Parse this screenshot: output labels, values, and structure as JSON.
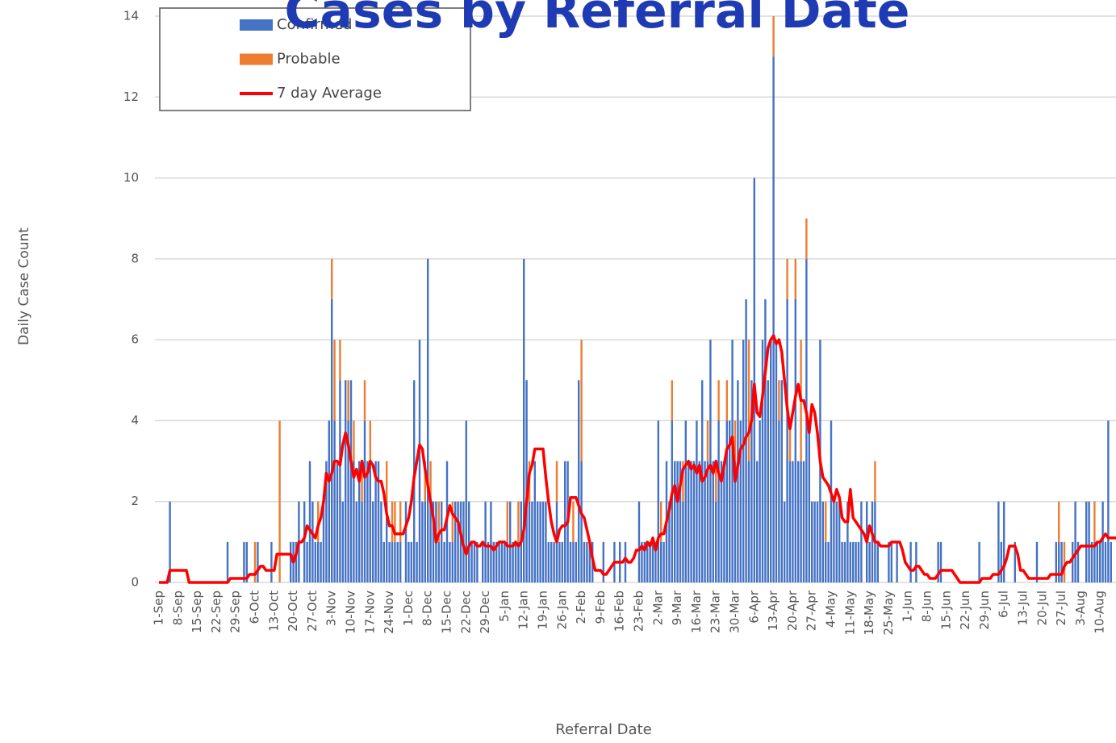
{
  "chart_data": {
    "type": "bar",
    "title": "Cases by Referral Date",
    "x_label": "Referral Date",
    "y_label": "Daily Case Count",
    "ylim": [
      0,
      14
    ],
    "yticks": [
      0,
      2,
      4,
      6,
      8,
      10,
      12,
      14
    ],
    "grid": true,
    "legend": "upper left",
    "categories": [
      "1-Sep",
      null,
      null,
      null,
      null,
      null,
      null,
      "8-Sep",
      null,
      null,
      null,
      null,
      null,
      null,
      "15-Sep",
      null,
      null,
      null,
      null,
      null,
      null,
      "22-Sep",
      null,
      null,
      null,
      null,
      null,
      null,
      "29-Sep",
      null,
      null,
      null,
      null,
      null,
      null,
      "6-Oct",
      null,
      null,
      null,
      null,
      null,
      null,
      "13-Oct",
      null,
      null,
      null,
      null,
      null,
      null,
      "20-Oct",
      null,
      null,
      null,
      null,
      null,
      null,
      "27-Oct",
      null,
      null,
      null,
      null,
      null,
      null,
      "3-Nov",
      null,
      null,
      null,
      null,
      null,
      null,
      "10-Nov",
      null,
      null,
      null,
      null,
      null,
      null,
      "17-Nov",
      null,
      null,
      null,
      null,
      null,
      null,
      "24-Nov",
      null,
      null,
      null,
      null,
      null,
      null,
      "1-Dec",
      null,
      null,
      null,
      null,
      null,
      null,
      "8-Dec",
      null,
      null,
      null,
      null,
      null,
      null,
      "15-Dec",
      null,
      null,
      null,
      null,
      null,
      null,
      "22-Dec",
      null,
      null,
      null,
      null,
      null,
      null,
      "29-Dec",
      null,
      null,
      null,
      null,
      null,
      null,
      "5-Jan",
      null,
      null,
      null,
      null,
      null,
      null,
      "12-Jan",
      null,
      null,
      null,
      null,
      null,
      null,
      "19-Jan",
      null,
      null,
      null,
      null,
      null,
      null,
      "26-Jan",
      null,
      null,
      null,
      null,
      null,
      null,
      "2-Feb",
      null,
      null,
      null,
      null,
      null,
      null,
      "9-Feb",
      null,
      null,
      null,
      null,
      null,
      null,
      "16-Feb",
      null,
      null,
      null,
      null,
      null,
      null,
      "23-Feb",
      null,
      null,
      null,
      null,
      null,
      null,
      "2-Mar",
      null,
      null,
      null,
      null,
      null,
      null,
      "9-Mar",
      null,
      null,
      null,
      null,
      null,
      null,
      "16-Mar",
      null,
      null,
      null,
      null,
      null,
      null,
      "23-Mar",
      null,
      null,
      null,
      null,
      null,
      null,
      "30-Mar",
      null,
      null,
      null,
      null,
      null,
      null,
      "6-Apr",
      null,
      null,
      null,
      null,
      null,
      null,
      "13-Apr",
      null,
      null,
      null,
      null,
      null,
      null,
      "20-Apr",
      null,
      null,
      null,
      null,
      null,
      null,
      "27-Apr",
      null,
      null,
      null,
      null,
      null,
      null,
      "4-May",
      null,
      null,
      null,
      null,
      null,
      null,
      "11-May",
      null,
      null,
      null,
      null,
      null,
      null,
      "18-May",
      null,
      null,
      null,
      null,
      null,
      null,
      "25-May",
      null,
      null,
      null,
      null,
      null,
      null,
      "1-Jun",
      null,
      null,
      null,
      null,
      null,
      null,
      "8-Jun",
      null,
      null,
      null,
      null,
      null,
      null,
      "15-Jun",
      null,
      null,
      null,
      null,
      null,
      null,
      "22-Jun",
      null,
      null,
      null,
      null,
      null,
      null,
      "29-Jun",
      null,
      null,
      null,
      null,
      null,
      null,
      "6-Jul",
      null,
      null,
      null,
      null,
      null,
      null,
      "13-Jul",
      null,
      null,
      null,
      null,
      null,
      null,
      "20-Jul",
      null,
      null,
      null,
      null,
      null,
      null,
      "27-Jul",
      null,
      null,
      null,
      null,
      null,
      null,
      "3-Aug",
      null,
      null,
      null,
      null,
      null,
      null,
      "10-Aug",
      null,
      null,
      null,
      null,
      null,
      null
    ],
    "series": [
      {
        "name": "Confirmed",
        "color": "#4472c4",
        "values": [
          0,
          0,
          0,
          0,
          2,
          0,
          0,
          0,
          0,
          0,
          0,
          0,
          0,
          0,
          0,
          0,
          0,
          0,
          0,
          0,
          0,
          0,
          0,
          0,
          0,
          1,
          0,
          0,
          0,
          0,
          0,
          1,
          1,
          0,
          0,
          0,
          1,
          0,
          0,
          0,
          0,
          1,
          0,
          0,
          0,
          0,
          0,
          0,
          1,
          1,
          1,
          2,
          0,
          2,
          1,
          3,
          2,
          1,
          1,
          1,
          2,
          3,
          4,
          7,
          4,
          3,
          5,
          2,
          5,
          4,
          5,
          3,
          2,
          3,
          2,
          4,
          3,
          3,
          2,
          3,
          3,
          2,
          1,
          2,
          1,
          1,
          1,
          1,
          1,
          0,
          2,
          1,
          1,
          5,
          1,
          6,
          2,
          2,
          8,
          2,
          2,
          2,
          1,
          2,
          1,
          3,
          1,
          1,
          2,
          2,
          2,
          2,
          4,
          2,
          1,
          1,
          1,
          0,
          1,
          2,
          1,
          2,
          1,
          1,
          1,
          1,
          1,
          1,
          2,
          1,
          1,
          1,
          2,
          8,
          5,
          2,
          2,
          3,
          2,
          2,
          2,
          2,
          1,
          1,
          1,
          2,
          1,
          1,
          3,
          3,
          1,
          1,
          1,
          5,
          3,
          1,
          1,
          1,
          1,
          0,
          0,
          0,
          1,
          0,
          0,
          0,
          1,
          0,
          1,
          0,
          1,
          0,
          0,
          0,
          0,
          2,
          1,
          1,
          1,
          1,
          1,
          1,
          4,
          1,
          1,
          3,
          2,
          4,
          3,
          3,
          3,
          2,
          4,
          3,
          3,
          3,
          4,
          3,
          5,
          3,
          3,
          6,
          3,
          2,
          4,
          3,
          3,
          4,
          4,
          6,
          3,
          5,
          4,
          6,
          7,
          3,
          5,
          10,
          3,
          4,
          6,
          7,
          5,
          6,
          13,
          6,
          4,
          5,
          2,
          7,
          3,
          3,
          7,
          3,
          3,
          3,
          8,
          4,
          2,
          2,
          2,
          6,
          2,
          1,
          1,
          4,
          2,
          2,
          2,
          1,
          1,
          2,
          1,
          1,
          1,
          1,
          2,
          0,
          2,
          1,
          2,
          2,
          1,
          0,
          0,
          0,
          1,
          1,
          0,
          1,
          0,
          0,
          0,
          0,
          1,
          0,
          1,
          0,
          0,
          0,
          0,
          0,
          0,
          0,
          1,
          1,
          0,
          0,
          0,
          0,
          0,
          0,
          0,
          0,
          0,
          0,
          0,
          0,
          0,
          1,
          0,
          0,
          0,
          0,
          0,
          0,
          2,
          1,
          2,
          0,
          0,
          0,
          1,
          0,
          0,
          0,
          0,
          0,
          0,
          0,
          1,
          0,
          0,
          0,
          0,
          0,
          0,
          1,
          1,
          1,
          0,
          0,
          0,
          1,
          2,
          1,
          0,
          0,
          2,
          2,
          1,
          1,
          1,
          1,
          2,
          1,
          4,
          1,
          0,
          0
        ]
      },
      {
        "name": "Probable",
        "color": "#ed7d31",
        "values": [
          0,
          0,
          0,
          0,
          0,
          0,
          0,
          0,
          0,
          0,
          0,
          0,
          0,
          0,
          0,
          0,
          0,
          0,
          0,
          0,
          0,
          0,
          0,
          0,
          0,
          0,
          0,
          0,
          0,
          0,
          0,
          0,
          0,
          0,
          0,
          1,
          0,
          0,
          0,
          0,
          0,
          0,
          0,
          0,
          4,
          0,
          0,
          0,
          0,
          0,
          0,
          0,
          0,
          0,
          0,
          0,
          0,
          0,
          1,
          0,
          0,
          0,
          0,
          1,
          2,
          0,
          1,
          0,
          0,
          1,
          0,
          1,
          0,
          0,
          1,
          1,
          0,
          1,
          0,
          0,
          0,
          0,
          0,
          1,
          0,
          1,
          1,
          0,
          1,
          0,
          0,
          0,
          0,
          0,
          0,
          0,
          0,
          1,
          0,
          1,
          0,
          0,
          1,
          0,
          0,
          0,
          0,
          1,
          0,
          0,
          0,
          0,
          0,
          0,
          0,
          0,
          0,
          0,
          0,
          0,
          0,
          0,
          0,
          0,
          0,
          0,
          0,
          1,
          0,
          0,
          0,
          1,
          0,
          0,
          0,
          1,
          0,
          0,
          0,
          0,
          0,
          0,
          0,
          0,
          0,
          1,
          0,
          0,
          0,
          0,
          0,
          1,
          0,
          0,
          3,
          0,
          0,
          0,
          0,
          0,
          0,
          0,
          0,
          0,
          0,
          0,
          0,
          0,
          0,
          0,
          0,
          0,
          0,
          0,
          0,
          0,
          0,
          0,
          0,
          0,
          0,
          0,
          0,
          1,
          0,
          0,
          0,
          1,
          0,
          0,
          0,
          1,
          0,
          0,
          0,
          0,
          0,
          0,
          0,
          0,
          1,
          0,
          0,
          1,
          1,
          0,
          0,
          1,
          0,
          0,
          1,
          0,
          0,
          0,
          0,
          3,
          0,
          0,
          0,
          0,
          0,
          0,
          0,
          0,
          1,
          0,
          1,
          0,
          0,
          1,
          1,
          0,
          1,
          0,
          3,
          0,
          1,
          0,
          0,
          0,
          0,
          0,
          0,
          1,
          0,
          0,
          0,
          0,
          0,
          0,
          0,
          0,
          0,
          0,
          0,
          0,
          0,
          0,
          0,
          0,
          0,
          1,
          0,
          0,
          0,
          0,
          0,
          0,
          0,
          0,
          0,
          0,
          0,
          0,
          0,
          0,
          0,
          0,
          0,
          0,
          0,
          0,
          0,
          0,
          0,
          0,
          0,
          0,
          0,
          0,
          0,
          0,
          0,
          0,
          0,
          0,
          0,
          0,
          0,
          0,
          0,
          0,
          0,
          0,
          0,
          0,
          0,
          0,
          0,
          0,
          0,
          0,
          0,
          0,
          0,
          0,
          0,
          0,
          0,
          0,
          0,
          0,
          0,
          0,
          0,
          0,
          0,
          0,
          1,
          0,
          1,
          0,
          0,
          0,
          0,
          0,
          0,
          0,
          0,
          0,
          0,
          1,
          0,
          0,
          0,
          0,
          0,
          0,
          0,
          0
        ]
      },
      {
        "name": "7 day Average",
        "color": "#ff0000",
        "values": [
          0,
          0,
          0,
          0,
          0.3,
          0.3,
          0.3,
          0.3,
          0.3,
          0.3,
          0.3,
          0,
          0,
          0,
          0,
          0,
          0,
          0,
          0,
          0,
          0,
          0,
          0,
          0,
          0,
          0,
          0.1,
          0.1,
          0.1,
          0.1,
          0.1,
          0.1,
          0.1,
          0.2,
          0.2,
          0.2,
          0.3,
          0.4,
          0.4,
          0.3,
          0.3,
          0.3,
          0.3,
          0.7,
          0.7,
          0.7,
          0.7,
          0.7,
          0.7,
          0.5,
          0.7,
          1.0,
          1.0,
          1.1,
          1.4,
          1.3,
          1.2,
          1.1,
          1.4,
          1.6,
          2.0,
          2.7,
          2.5,
          2.7,
          3.0,
          3.0,
          2.9,
          3.4,
          3.7,
          3.4,
          3.0,
          2.6,
          2.8,
          2.5,
          3.0,
          2.6,
          2.7,
          3.0,
          2.9,
          2.6,
          2.5,
          2.5,
          2.2,
          1.7,
          1.4,
          1.4,
          1.2,
          1.2,
          1.2,
          1.2,
          1.4,
          1.6,
          2.0,
          2.6,
          3.0,
          3.4,
          3.3,
          2.8,
          2.4,
          2.0,
          1.6,
          1.0,
          1.2,
          1.3,
          1.3,
          1.6,
          1.9,
          1.7,
          1.6,
          1.5,
          1.2,
          0.9,
          0.7,
          0.9,
          1.0,
          1.0,
          0.9,
          0.9,
          1.0,
          0.9,
          0.9,
          0.9,
          0.8,
          0.9,
          1.0,
          1.0,
          1.0,
          0.9,
          0.9,
          0.9,
          1.0,
          0.9,
          1.0,
          1.3,
          2.0,
          2.7,
          2.9,
          3.3,
          3.3,
          3.3,
          3.3,
          2.6,
          2.0,
          1.5,
          1.2,
          1.0,
          1.3,
          1.4,
          1.4,
          1.5,
          2.1,
          2.1,
          2.1,
          1.9,
          1.7,
          1.6,
          1.3,
          1.0,
          0.6,
          0.3,
          0.3,
          0.3,
          0.2,
          0.2,
          0.3,
          0.4,
          0.5,
          0.5,
          0.5,
          0.5,
          0.6,
          0.5,
          0.5,
          0.6,
          0.8,
          0.8,
          0.9,
          0.8,
          1.0,
          0.9,
          1.1,
          0.8,
          1.1,
          1.2,
          1.2,
          1.5,
          1.8,
          2.2,
          2.4,
          2.0,
          2.4,
          2.8,
          2.9,
          3.0,
          2.8,
          2.9,
          2.7,
          2.9,
          2.5,
          2.6,
          2.8,
          2.9,
          2.7,
          3.0,
          2.7,
          2.5,
          2.9,
          3.3,
          3.4,
          3.6,
          2.5,
          2.9,
          3.3,
          3.4,
          3.6,
          3.7,
          4.0,
          4.9,
          4.2,
          4.1,
          4.6,
          5.2,
          5.8,
          6.0,
          6.1,
          5.9,
          6.0,
          5.7,
          5.0,
          4.3,
          3.8,
          4.2,
          4.6,
          4.9,
          4.5,
          4.5,
          4.2,
          3.7,
          4.4,
          4.2,
          3.7,
          3.0,
          2.6,
          2.5,
          2.4,
          2.2,
          2.0,
          2.3,
          2.1,
          1.6,
          1.5,
          1.5,
          2.3,
          1.6,
          1.5,
          1.4,
          1.3,
          1.2,
          1.0,
          1.4,
          1.2,
          1.0,
          1.0,
          0.9,
          0.9,
          0.9,
          0.9,
          1.0,
          1.0,
          1.0,
          1.0,
          0.8,
          0.5,
          0.4,
          0.3,
          0.3,
          0.4,
          0.4,
          0.3,
          0.2,
          0.2,
          0.1,
          0.1,
          0.1,
          0.2,
          0.3,
          0.3,
          0.3,
          0.3,
          0.3,
          0.2,
          0.1,
          0,
          0,
          0,
          0,
          0,
          0,
          0,
          0,
          0.1,
          0.1,
          0.1,
          0.1,
          0.2,
          0.2,
          0.2,
          0.3,
          0.4,
          0.6,
          0.9,
          0.9,
          0.9,
          0.7,
          0.3,
          0.3,
          0.2,
          0.1,
          0.1,
          0.1,
          0.1,
          0.1,
          0.1,
          0.1,
          0.1,
          0.2,
          0.2,
          0.2,
          0.2,
          0.2,
          0.4,
          0.5,
          0.5,
          0.6,
          0.7,
          0.8,
          0.9,
          0.9,
          0.9,
          0.9,
          0.9,
          0.9,
          1.0,
          1.0,
          1.1,
          1.2,
          1.1,
          1.1,
          1.1,
          1.1
        ]
      }
    ]
  }
}
